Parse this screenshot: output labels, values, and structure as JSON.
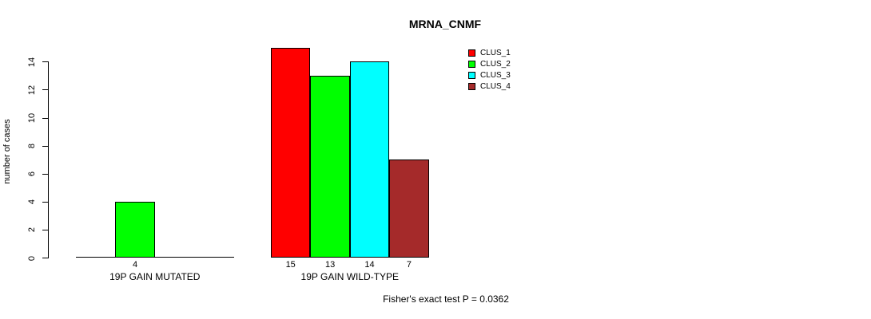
{
  "title": "MRNA_CNMF",
  "y_axis": {
    "label": "number of cases"
  },
  "footer": "Fisher's exact test P = 0.0362",
  "legend": {
    "items": [
      {
        "label": "CLUS_1",
        "color": "#ff0000"
      },
      {
        "label": "CLUS_2",
        "color": "#00ff00"
      },
      {
        "label": "CLUS_3",
        "color": "#00ffff"
      },
      {
        "label": "CLUS_4",
        "color": "#a52a2a"
      }
    ]
  },
  "chart_data": {
    "type": "bar",
    "title": "MRNA_CNMF",
    "ylabel": "number of cases",
    "xlabel": "",
    "ylim": [
      0,
      15
    ],
    "yticks": [
      0,
      2,
      4,
      6,
      8,
      10,
      12,
      14
    ],
    "grid": false,
    "legend_position": "top-right",
    "series": [
      "CLUS_1",
      "CLUS_2",
      "CLUS_3",
      "CLUS_4"
    ],
    "series_colors": [
      "#ff0000",
      "#00ff00",
      "#00ffff",
      "#a52a2a"
    ],
    "categories": [
      "19P GAIN MUTATED",
      "19P GAIN WILD-TYPE"
    ],
    "groups": [
      {
        "label": "19P GAIN MUTATED",
        "values": [
          0,
          4,
          0,
          0
        ],
        "bar_labels": [
          "",
          "4",
          "",
          ""
        ]
      },
      {
        "label": "19P GAIN WILD-TYPE",
        "values": [
          15,
          13,
          14,
          7
        ],
        "bar_labels": [
          "15",
          "13",
          "14",
          "7"
        ]
      }
    ],
    "annotation": "Fisher's exact test P = 0.0362"
  }
}
